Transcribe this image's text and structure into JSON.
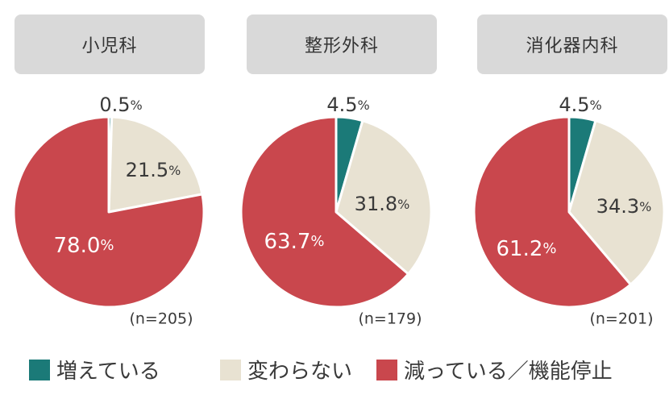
{
  "chart_data": {
    "type": "pie",
    "categories": [
      "増えている",
      "変わらない",
      "減っている／機能停止"
    ],
    "colors": {
      "増えている": "#1b7a78",
      "変わらない": "#e8e2d2",
      "減っている／機能停止": "#c9474d"
    },
    "charts": [
      {
        "title": "小児科",
        "n_label": "(n=205)",
        "values": [
          0.5,
          21.5,
          78.0
        ],
        "labels": [
          "0.5%",
          "21.5%",
          "78.0%"
        ]
      },
      {
        "title": "整形外科",
        "n_label": "(n=179)",
        "values": [
          4.5,
          31.8,
          63.7
        ],
        "labels": [
          "4.5%",
          "31.8%",
          "63.7%"
        ]
      },
      {
        "title": "消化器内科",
        "n_label": "(n=201)",
        "values": [
          4.5,
          34.3,
          61.2
        ],
        "labels": [
          "4.5%",
          "34.3%",
          "61.2%"
        ]
      }
    ]
  }
}
